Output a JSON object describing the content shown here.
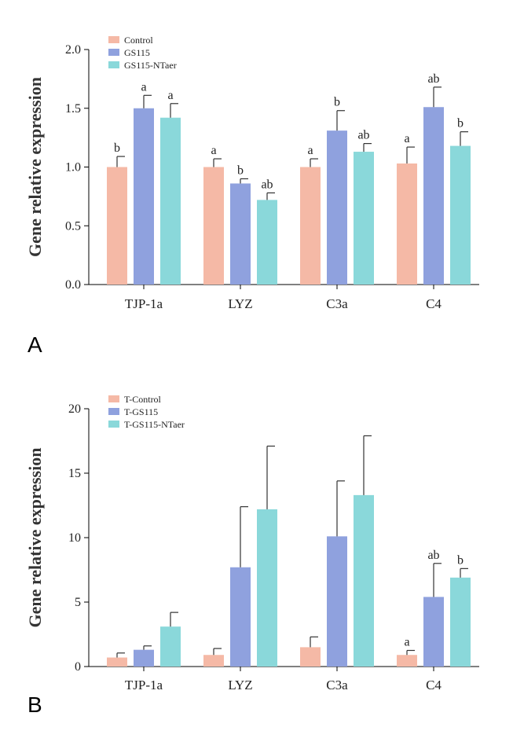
{
  "chart_data": [
    {
      "type": "bar",
      "panel_label": "A",
      "ylabel": "Gene relative expression",
      "ylim": [
        0,
        2.0
      ],
      "yticks": [
        "0.0",
        "0.5",
        "1.0",
        "1.5",
        "2.0"
      ],
      "ytick_values": [
        0,
        0.5,
        1.0,
        1.5,
        2.0
      ],
      "categories": [
        "TJP-1a",
        "LYZ",
        "C3a",
        "C4"
      ],
      "legend_position": "top-left",
      "grid": false,
      "series": [
        {
          "name": "Control",
          "color": "#F5B9A6",
          "values": [
            1.0,
            1.0,
            1.0,
            1.03
          ],
          "errors": [
            0.09,
            0.07,
            0.07,
            0.14
          ],
          "labels": [
            "b",
            "a",
            "a",
            "a"
          ]
        },
        {
          "name": "GS115",
          "color": "#8FA1DE",
          "values": [
            1.5,
            0.86,
            1.31,
            1.51
          ],
          "errors": [
            0.11,
            0.04,
            0.17,
            0.17
          ],
          "labels": [
            "a",
            "b",
            "b",
            "ab"
          ]
        },
        {
          "name": "GS115-NTaer",
          "color": "#8AD8DA",
          "values": [
            1.42,
            0.72,
            1.13,
            1.18
          ],
          "errors": [
            0.12,
            0.06,
            0.07,
            0.12
          ],
          "labels": [
            "a",
            "ab",
            "ab",
            "b"
          ]
        }
      ]
    },
    {
      "type": "bar",
      "panel_label": "B",
      "ylabel": "Gene relative expression",
      "ylim": [
        0,
        20
      ],
      "yticks": [
        "0",
        "5",
        "10",
        "15",
        "20"
      ],
      "ytick_values": [
        0,
        5,
        10,
        15,
        20
      ],
      "categories": [
        "TJP-1a",
        "LYZ",
        "C3a",
        "C4"
      ],
      "legend_position": "top-left",
      "grid": false,
      "series": [
        {
          "name": "T-Control",
          "color": "#F5B9A6",
          "values": [
            0.7,
            0.9,
            1.5,
            0.9
          ],
          "errors": [
            0.35,
            0.5,
            0.8,
            0.35
          ],
          "labels": [
            "",
            "",
            "",
            "a"
          ]
        },
        {
          "name": "T-GS115",
          "color": "#8FA1DE",
          "values": [
            1.3,
            7.7,
            10.1,
            5.4
          ],
          "errors": [
            0.3,
            4.7,
            4.3,
            2.6
          ],
          "labels": [
            "",
            "",
            "",
            "ab"
          ]
        },
        {
          "name": "T-GS115-NTaer",
          "color": "#8AD8DA",
          "values": [
            3.1,
            12.2,
            13.3,
            6.9
          ],
          "errors": [
            1.1,
            4.9,
            4.6,
            0.7
          ],
          "labels": [
            "",
            "",
            "",
            "b"
          ]
        }
      ]
    }
  ]
}
